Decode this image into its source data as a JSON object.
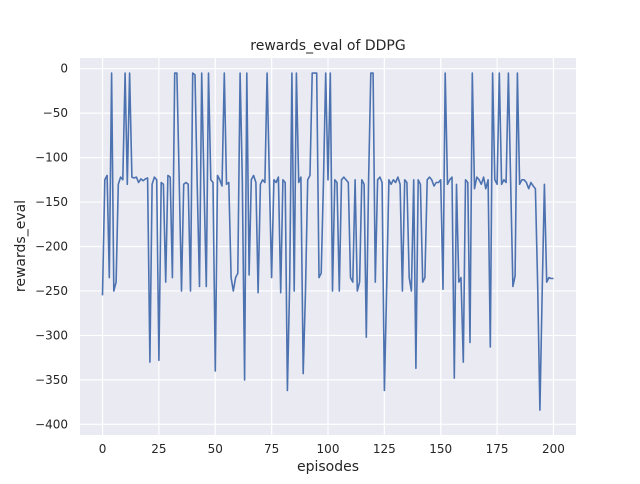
{
  "chart_data": {
    "type": "line",
    "title": "rewards_eval of DDPG",
    "xlabel": "episodes",
    "ylabel": "rewards_eval",
    "xlim": [
      -10,
      210
    ],
    "ylim": [
      -412,
      12
    ],
    "xticks": [
      0,
      25,
      50,
      75,
      100,
      125,
      150,
      175,
      200
    ],
    "yticks": [
      0,
      -50,
      -100,
      -150,
      -200,
      -250,
      -300,
      -350,
      -400
    ],
    "grid": true,
    "line_color": "#4c72b0",
    "axes_background": "#eaeaf2",
    "x_start": 0,
    "values": [
      -255,
      -125,
      -120,
      -235,
      -5,
      -250,
      -240,
      -130,
      -122,
      -125,
      -5,
      -130,
      -5,
      -122,
      -123,
      -122,
      -128,
      -124,
      -126,
      -124,
      -123,
      -330,
      -130,
      -122,
      -125,
      -328,
      -128,
      -130,
      -240,
      -120,
      -122,
      -235,
      -5,
      -5,
      -125,
      -250,
      -130,
      -128,
      -130,
      -250,
      -5,
      -7,
      -130,
      -245,
      -5,
      -130,
      -245,
      -5,
      -125,
      -128,
      -340,
      -120,
      -125,
      -132,
      -5,
      -130,
      -128,
      -235,
      -250,
      -235,
      -230,
      -5,
      -125,
      -350,
      -5,
      -232,
      -125,
      -120,
      -128,
      -252,
      -130,
      -125,
      -128,
      -5,
      -125,
      -235,
      -125,
      -128,
      -122,
      -252,
      -125,
      -128,
      -362,
      -240,
      -5,
      -250,
      -5,
      -128,
      -122,
      -343,
      -250,
      -125,
      -120,
      -5,
      -5,
      -5,
      -235,
      -230,
      -125,
      -5,
      -125,
      -5,
      -250,
      -125,
      -128,
      -250,
      -125,
      -122,
      -125,
      -128,
      -235,
      -240,
      -125,
      -250,
      -240,
      -125,
      -130,
      -302,
      -125,
      -5,
      -5,
      -240,
      -125,
      -122,
      -128,
      -362,
      -250,
      -125,
      -130,
      -125,
      -128,
      -122,
      -130,
      -250,
      -125,
      -128,
      -235,
      -250,
      -125,
      -337,
      -125,
      -130,
      -240,
      -235,
      -125,
      -122,
      -125,
      -132,
      -128,
      -128,
      -125,
      -248,
      -5,
      -130,
      -125,
      -122,
      -348,
      -130,
      -240,
      -235,
      -330,
      -125,
      -128,
      -308,
      -5,
      -135,
      -122,
      -125,
      -130,
      -122,
      -135,
      -125,
      -313,
      -5,
      -125,
      -130,
      -5,
      -130,
      -125,
      -128,
      -5,
      -125,
      -245,
      -233,
      -5,
      -130,
      -125,
      -125,
      -128,
      -135,
      -128,
      -132,
      -135,
      -245,
      -384,
      -250,
      -130,
      -240,
      -235,
      -236,
      -236
    ]
  }
}
